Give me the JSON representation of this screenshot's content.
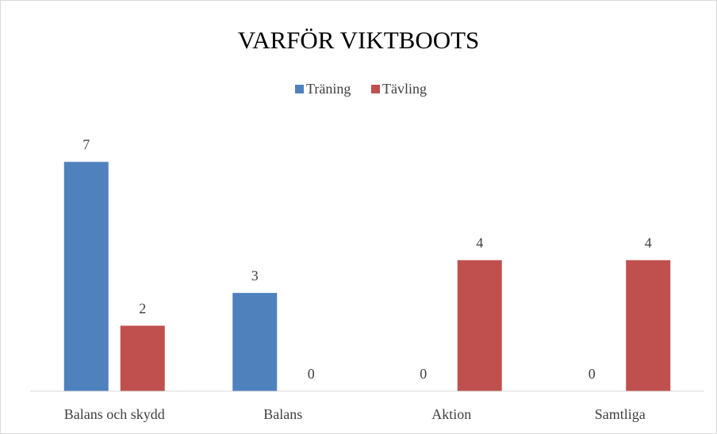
{
  "chart_data": {
    "type": "bar",
    "title": "VARFÖR VIKTBOOTS",
    "categories": [
      "Balans och skydd",
      "Balans",
      "Aktion",
      "Samtliga"
    ],
    "series": [
      {
        "name": "Träning",
        "color": "#4f81bd",
        "values": [
          7,
          3,
          0,
          0
        ]
      },
      {
        "name": "Tävling",
        "color": "#c0504d",
        "values": [
          2,
          0,
          4,
          4
        ]
      }
    ],
    "ylim": [
      0,
      8
    ],
    "legend": "top"
  }
}
